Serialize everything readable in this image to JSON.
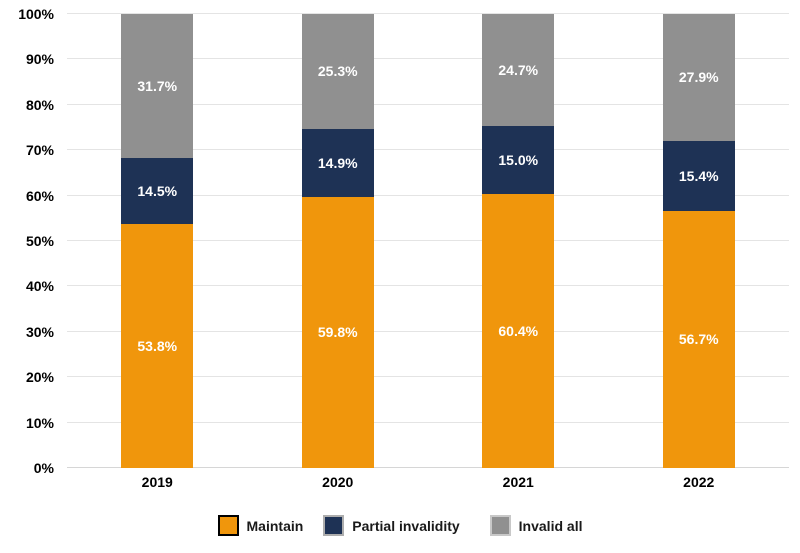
{
  "chart_data": {
    "type": "bar",
    "stacked": true,
    "orientation": "vertical",
    "title": "",
    "xlabel": "",
    "ylabel": "",
    "categories": [
      "2019",
      "2020",
      "2021",
      "2022"
    ],
    "series": [
      {
        "name": "Maintain",
        "color": "#F0960C",
        "swatch_border_color": "#000000",
        "values": [
          53.8,
          59.8,
          60.4,
          56.7
        ],
        "labels": [
          "53.8%",
          "59.8%",
          "60.4%",
          "56.7%"
        ]
      },
      {
        "name": "Partial invalidity",
        "color": "#1E3255",
        "swatch_border_color": "#ADADAD",
        "values": [
          14.5,
          14.9,
          15.0,
          15.4
        ],
        "labels": [
          "14.5%",
          "14.9%",
          "15.0%",
          "15.4%"
        ]
      },
      {
        "name": "Invalid all",
        "color": "#909090",
        "swatch_border_color": "#C8C8C8",
        "values": [
          31.7,
          25.3,
          24.7,
          27.9
        ],
        "labels": [
          "31.7%",
          "25.3%",
          "24.7%",
          "27.9%"
        ]
      }
    ],
    "ylim": [
      0,
      100
    ],
    "ytick_step": 10,
    "ytick_labels": [
      "0%",
      "10%",
      "20%",
      "30%",
      "40%",
      "50%",
      "60%",
      "70%",
      "80%",
      "90%",
      "100%"
    ],
    "grid": true,
    "legend_position": "bottom",
    "segment_label_color": "#FFFFFF",
    "gridline_color": "#E4E4E4",
    "axis_text_color": "#000000"
  }
}
